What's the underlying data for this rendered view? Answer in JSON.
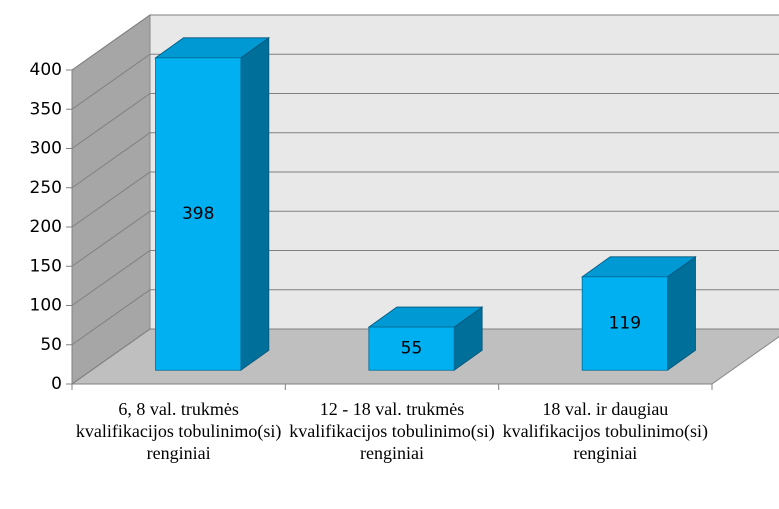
{
  "chart_data": {
    "type": "bar3d",
    "categories": [
      "6, 8 val. trukmės kvalifikacijos tobulinimo(si) renginiai",
      "12 - 18 val. trukmės kvalifikacijos tobulinimo(si) renginiai",
      "18 val. ir daugiau kvalifikacijos tobulinimo(si) renginiai"
    ],
    "values": [
      398,
      55,
      119
    ],
    "color": "#00b0f0",
    "ylim": [
      0,
      400
    ],
    "yticks": [
      0,
      50,
      100,
      150,
      200,
      250,
      300,
      350,
      400
    ],
    "grid": true
  }
}
